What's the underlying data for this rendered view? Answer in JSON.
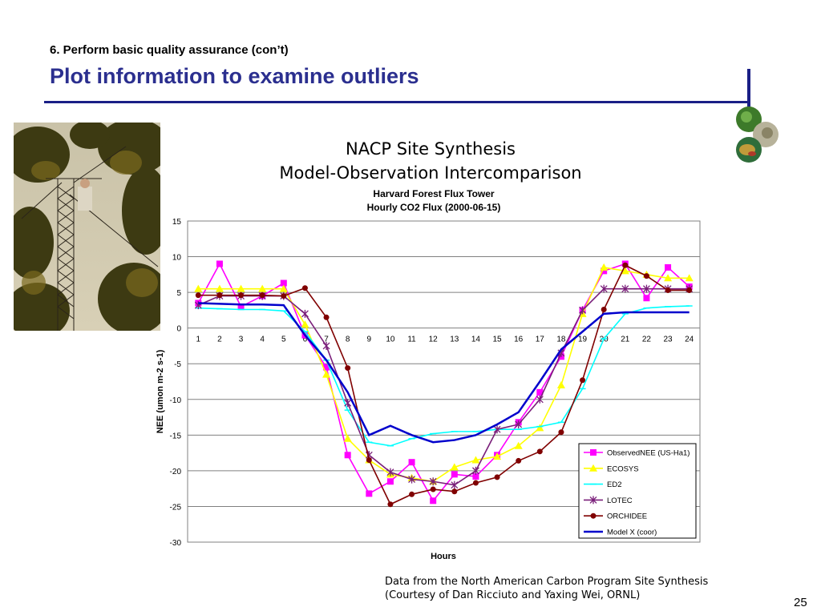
{
  "slide": {
    "subtitle": "6. Perform basic quality assurance (con’t)",
    "title": "Plot information to examine outliers",
    "chart_title_line1": "NACP Site Synthesis",
    "chart_title_line2": "Model-Observation Intercomparison",
    "footnote_line1": "Data from the North American Carbon Program Site Synthesis",
    "footnote_line2": "(Courtesy of Dan Ricciuto and Yaxing Wei, ORNL)",
    "page_number": "25"
  },
  "chart_data": {
    "type": "line",
    "title": "Harvard Forest Flux Tower",
    "subtitle": "Hourly CO2 Flux (2000-06-15)",
    "xlabel": "Hours",
    "ylabel": "NEE (umon m-2 s-1)",
    "ylim": [
      -30,
      15
    ],
    "yticks": [
      15,
      10,
      5,
      0,
      -5,
      -10,
      -15,
      -20,
      -25,
      -30
    ],
    "x": [
      1,
      2,
      3,
      4,
      5,
      6,
      7,
      8,
      9,
      10,
      11,
      12,
      13,
      14,
      15,
      16,
      17,
      18,
      19,
      20,
      21,
      22,
      23,
      24
    ],
    "grid": true,
    "legend_position": "bottom-right",
    "series": [
      {
        "name": "ObservedNEE (US-Ha1)",
        "color": "#ff00ff",
        "marker": "square",
        "values": [
          3.5,
          9,
          3,
          4.5,
          6.3,
          -1,
          -5.5,
          -17.8,
          -23.2,
          -21.5,
          -18.8,
          -24.2,
          -20.5,
          -20.8,
          -17.8,
          -13.2,
          -9,
          -4,
          2.5,
          8,
          9,
          4.2,
          8.5,
          5.8
        ]
      },
      {
        "name": "ECOSYS",
        "color": "#ffff00",
        "marker": "triangle",
        "values": [
          5.5,
          5.5,
          5.5,
          5.5,
          5.5,
          0.5,
          -6.5,
          -15.5,
          -18.5,
          -20.5,
          -21,
          -21.5,
          -19.5,
          -18.5,
          -18,
          -16.5,
          -14,
          -8,
          2,
          8.5,
          8,
          7.5,
          7,
          7
        ]
      },
      {
        "name": "ED2",
        "color": "#00ffff",
        "marker": "dash",
        "values": [
          2.8,
          2.7,
          2.6,
          2.6,
          2.4,
          -0.5,
          -4.5,
          -11.5,
          -16,
          -16.5,
          -15.5,
          -14.8,
          -14.5,
          -14.5,
          -14.2,
          -14.2,
          -13.8,
          -13.2,
          -8.5,
          -1.5,
          2,
          2.8,
          3,
          3.1
        ]
      },
      {
        "name": "LOTEC",
        "color": "#7a1f7a",
        "marker": "star",
        "values": [
          3.2,
          4.5,
          4.5,
          4.5,
          4.5,
          2,
          -2.5,
          -10.5,
          -17.8,
          -20.2,
          -21.2,
          -21.5,
          -22,
          -20,
          -14.2,
          -13.5,
          -10,
          -3.5,
          2.5,
          5.5,
          5.5,
          5.5,
          5.5,
          5.5
        ]
      },
      {
        "name": "ORCHIDEE",
        "color": "#800000",
        "marker": "circle",
        "values": [
          4.6,
          4.6,
          4.6,
          4.6,
          4.5,
          5.6,
          1.5,
          -5.6,
          -18.5,
          -24.7,
          -23.3,
          -22.6,
          -22.9,
          -21.7,
          -20.9,
          -18.6,
          -17.3,
          -14.6,
          -7.3,
          2.6,
          8.8,
          7.3,
          5.3,
          5.3
        ]
      },
      {
        "name": "Model X (coor)",
        "color": "#0000cc",
        "marker": "none",
        "values": [
          3.5,
          3.4,
          3.3,
          3.3,
          3.2,
          -1,
          -4.5,
          -9,
          -15,
          -13.7,
          -15,
          -16,
          -15.7,
          -15,
          -13.5,
          -11.8,
          -7.5,
          -3,
          -0.5,
          2,
          2.2,
          2.2,
          2.2,
          2.2
        ]
      }
    ]
  },
  "icons": {
    "photo": "tower-photo",
    "logo": "globe-logo"
  }
}
